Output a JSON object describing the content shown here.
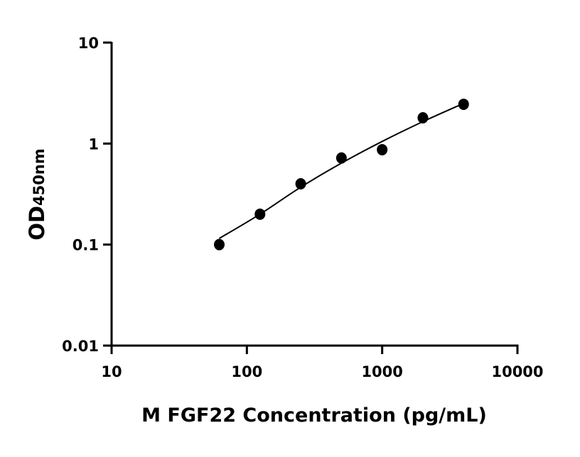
{
  "chart_data": {
    "type": "scatter",
    "xlabel": "M FGF22 Concentration (pg/mL)",
    "ylabel": "OD",
    "ylabel_subscript": "450nm",
    "x_scale": "log",
    "y_scale": "log",
    "xlim": [
      10,
      10000
    ],
    "ylim": [
      0.01,
      10
    ],
    "x_ticks": [
      "10",
      "100",
      "1000",
      "10000"
    ],
    "y_ticks": [
      "0.01",
      "0.1",
      "1",
      "10"
    ],
    "grid": false,
    "legend": "none",
    "series": [
      {
        "points": [
          {
            "x": 62.5,
            "y": 0.1
          },
          {
            "x": 125,
            "y": 0.2
          },
          {
            "x": 250,
            "y": 0.4
          },
          {
            "x": 500,
            "y": 0.72
          },
          {
            "x": 1000,
            "y": 0.87
          },
          {
            "x": 2000,
            "y": 1.8
          },
          {
            "x": 4000,
            "y": 2.45
          }
        ],
        "color": "#000000"
      }
    ],
    "fit_curve": {
      "x": [
        62.5,
        125,
        250,
        500,
        1000,
        2000,
        4000
      ],
      "y": [
        0.115,
        0.2,
        0.37,
        0.64,
        1.05,
        1.65,
        2.5
      ],
      "color": "#000000"
    }
  }
}
